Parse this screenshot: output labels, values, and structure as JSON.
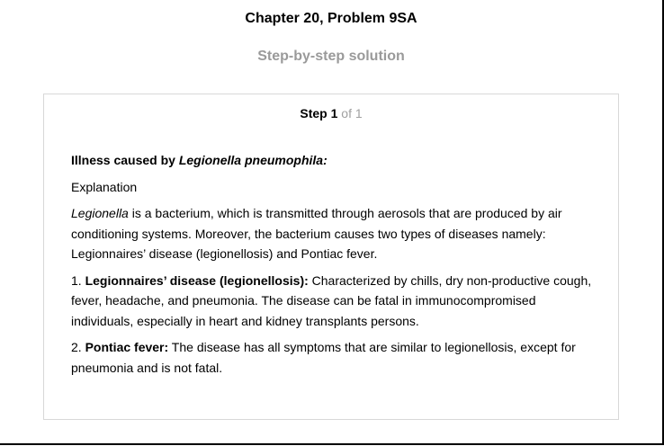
{
  "header": {
    "chapter_title": "Chapter 20, Problem 9SA",
    "subtitle": "Step-by-step solution"
  },
  "step": {
    "label": "Step",
    "number": "1",
    "of_text": "of 1"
  },
  "content": {
    "heading_prefix": "Illness caused by ",
    "heading_italic": "Legionella pneumophila:",
    "explanation_label": "Explanation",
    "para1_italic": "Legionella",
    "para1_rest": " is a bacterium, which is transmitted through aerosols that are produced by air conditioning systems. Moreover, the bacterium causes two types of diseases namely: Legionnaires’ disease (legionellosis) and Pontiac fever.",
    "item1_number": "1. ",
    "item1_bold": "Legionnaires’ disease (legionellosis):",
    "item1_rest": " Characterized by chills, dry non-productive cough, fever, headache, and pneumonia. The disease can be fatal in immunocompromised individuals, especially in heart and kidney transplants persons.",
    "item2_number": "2. ",
    "item2_bold": "Pontiac fever:",
    "item2_rest": " The disease has all symptoms that are similar to legionellosis, except for pneumonia and is not fatal."
  }
}
